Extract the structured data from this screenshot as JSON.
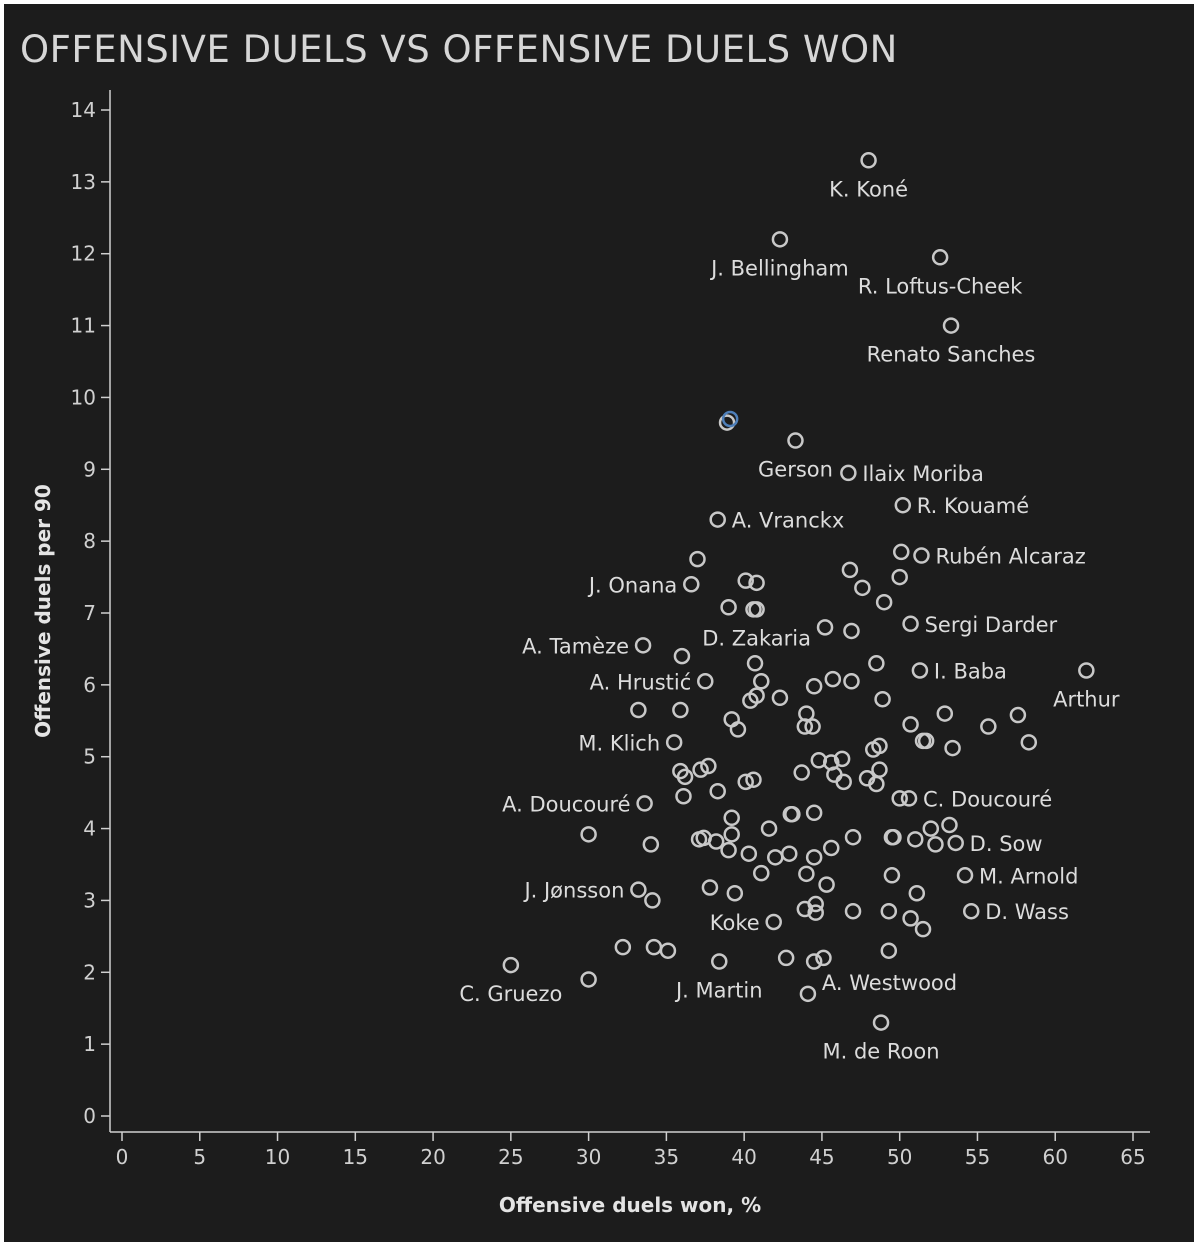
{
  "chart_data": {
    "type": "scatter",
    "title": "OFFENSIVE DUELS VS OFFENSIVE DUELS WON",
    "xlabel": "Offensive duels won, %",
    "ylabel": "Offensive duels per 90",
    "xlim": [
      0,
      65
    ],
    "ylim": [
      0,
      14
    ],
    "xticks": [
      0,
      5,
      10,
      15,
      20,
      25,
      30,
      35,
      40,
      45,
      50,
      55,
      60,
      65
    ],
    "yticks": [
      0,
      1,
      2,
      3,
      4,
      5,
      6,
      7,
      8,
      9,
      10,
      11,
      12,
      13,
      14
    ],
    "grid": false,
    "colors": {
      "background": "#1c1c1c",
      "point": "#c8c8c8",
      "highlight": "#4f7fb8",
      "text": "#d6d6d6"
    },
    "labeled_points": [
      {
        "label": "K. Koné",
        "x": 48.0,
        "y": 13.3,
        "pos": "below"
      },
      {
        "label": "J. Bellingham",
        "x": 42.3,
        "y": 12.2,
        "pos": "below"
      },
      {
        "label": "R. Loftus-Cheek",
        "x": 52.6,
        "y": 11.95,
        "pos": "below"
      },
      {
        "label": "Renato Sanches",
        "x": 53.3,
        "y": 11.0,
        "pos": "below"
      },
      {
        "label": "Gerson",
        "x": 43.3,
        "y": 9.4,
        "pos": "below"
      },
      {
        "label": "Ilaix Moriba",
        "x": 46.7,
        "y": 8.95,
        "pos": "right"
      },
      {
        "label": "R. Kouamé",
        "x": 50.2,
        "y": 8.5,
        "pos": "right"
      },
      {
        "label": "A. Vranckx",
        "x": 38.3,
        "y": 8.3,
        "pos": "right"
      },
      {
        "label": "Rubén Alcaraz",
        "x": 51.4,
        "y": 7.8,
        "pos": "right"
      },
      {
        "label": "J. Onana",
        "x": 36.6,
        "y": 7.4,
        "pos": "left"
      },
      {
        "label": "Sergi Darder",
        "x": 50.7,
        "y": 6.85,
        "pos": "right"
      },
      {
        "label": "D. Zakaria",
        "x": 40.8,
        "y": 7.05,
        "pos": "below"
      },
      {
        "label": "A. Tamèze",
        "x": 33.5,
        "y": 6.55,
        "pos": "left"
      },
      {
        "label": "I. Baba",
        "x": 51.3,
        "y": 6.2,
        "pos": "right"
      },
      {
        "label": "Arthur",
        "x": 62.0,
        "y": 6.2,
        "pos": "below"
      },
      {
        "label": "A. Hrustić",
        "x": 37.5,
        "y": 6.05,
        "pos": "left"
      },
      {
        "label": "M. Klich",
        "x": 35.5,
        "y": 5.2,
        "pos": "left"
      },
      {
        "label": "A. Doucouré",
        "x": 33.6,
        "y": 4.35,
        "pos": "left"
      },
      {
        "label": "C. Doucouré",
        "x": 50.6,
        "y": 4.42,
        "pos": "right"
      },
      {
        "label": "D. Sow",
        "x": 53.6,
        "y": 3.8,
        "pos": "right"
      },
      {
        "label": "M. Arnold",
        "x": 54.2,
        "y": 3.35,
        "pos": "right"
      },
      {
        "label": "J. Jønsson",
        "x": 33.2,
        "y": 3.15,
        "pos": "left"
      },
      {
        "label": "D. Wass",
        "x": 54.6,
        "y": 2.85,
        "pos": "right"
      },
      {
        "label": "Koke",
        "x": 41.9,
        "y": 2.7,
        "pos": "left"
      },
      {
        "label": "C. Gruezo",
        "x": 25.0,
        "y": 2.1,
        "pos": "below"
      },
      {
        "label": "J. Martin",
        "x": 38.4,
        "y": 2.15,
        "pos": "below"
      },
      {
        "label": "A. Westwood",
        "x": 44.1,
        "y": 1.7,
        "pos": "right-up"
      },
      {
        "label": "M. de Roon",
        "x": 48.8,
        "y": 1.3,
        "pos": "below"
      }
    ],
    "highlighted_points": [
      {
        "x": 39.1,
        "y": 9.7
      }
    ],
    "points": [
      [
        38.9,
        9.65
      ],
      [
        37.0,
        7.75
      ],
      [
        40.1,
        7.45
      ],
      [
        40.8,
        7.42
      ],
      [
        39.0,
        7.08
      ],
      [
        40.6,
        7.05
      ],
      [
        46.8,
        7.6
      ],
      [
        47.6,
        7.35
      ],
      [
        49.0,
        7.15
      ],
      [
        50.0,
        7.5
      ],
      [
        50.1,
        7.85
      ],
      [
        45.2,
        6.8
      ],
      [
        46.9,
        6.75
      ],
      [
        36.0,
        6.4
      ],
      [
        40.7,
        6.3
      ],
      [
        48.5,
        6.3
      ],
      [
        41.1,
        6.05
      ],
      [
        40.8,
        5.85
      ],
      [
        40.4,
        5.78
      ],
      [
        42.3,
        5.82
      ],
      [
        44.5,
        5.98
      ],
      [
        45.7,
        6.08
      ],
      [
        46.9,
        6.05
      ],
      [
        48.9,
        5.8
      ],
      [
        33.2,
        5.65
      ],
      [
        35.9,
        5.65
      ],
      [
        39.2,
        5.52
      ],
      [
        39.6,
        5.38
      ],
      [
        44.0,
        5.6
      ],
      [
        43.9,
        5.42
      ],
      [
        44.4,
        5.42
      ],
      [
        50.7,
        5.45
      ],
      [
        52.9,
        5.6
      ],
      [
        51.5,
        5.22
      ],
      [
        51.7,
        5.22
      ],
      [
        53.4,
        5.12
      ],
      [
        55.7,
        5.42
      ],
      [
        57.6,
        5.58
      ],
      [
        58.3,
        5.2
      ],
      [
        48.3,
        5.1
      ],
      [
        48.7,
        5.15
      ],
      [
        35.9,
        4.8
      ],
      [
        36.2,
        4.72
      ],
      [
        37.2,
        4.82
      ],
      [
        37.7,
        4.87
      ],
      [
        38.3,
        4.52
      ],
      [
        40.1,
        4.65
      ],
      [
        40.6,
        4.68
      ],
      [
        43.7,
        4.78
      ],
      [
        44.8,
        4.95
      ],
      [
        45.6,
        4.92
      ],
      [
        46.3,
        4.97
      ],
      [
        45.8,
        4.75
      ],
      [
        46.4,
        4.65
      ],
      [
        47.9,
        4.7
      ],
      [
        48.5,
        4.62
      ],
      [
        48.7,
        4.82
      ],
      [
        36.1,
        4.45
      ],
      [
        50.0,
        4.42
      ],
      [
        39.2,
        4.15
      ],
      [
        41.6,
        4.0
      ],
      [
        43.0,
        4.2
      ],
      [
        43.1,
        4.2
      ],
      [
        44.5,
        4.22
      ],
      [
        52.0,
        4.0
      ],
      [
        53.2,
        4.05
      ],
      [
        30.0,
        3.92
      ],
      [
        34.0,
        3.78
      ],
      [
        37.1,
        3.85
      ],
      [
        37.4,
        3.87
      ],
      [
        38.2,
        3.82
      ],
      [
        39.2,
        3.92
      ],
      [
        39.0,
        3.7
      ],
      [
        40.3,
        3.65
      ],
      [
        42.0,
        3.6
      ],
      [
        42.9,
        3.65
      ],
      [
        44.5,
        3.6
      ],
      [
        45.6,
        3.73
      ],
      [
        47.0,
        3.88
      ],
      [
        49.5,
        3.88
      ],
      [
        49.6,
        3.88
      ],
      [
        51.0,
        3.85
      ],
      [
        52.3,
        3.78
      ],
      [
        41.1,
        3.38
      ],
      [
        44.0,
        3.37
      ],
      [
        45.3,
        3.22
      ],
      [
        49.5,
        3.35
      ],
      [
        37.8,
        3.18
      ],
      [
        39.4,
        3.1
      ],
      [
        51.1,
        3.1
      ],
      [
        34.1,
        3.0
      ],
      [
        43.9,
        2.88
      ],
      [
        44.6,
        2.95
      ],
      [
        44.6,
        2.83
      ],
      [
        47.0,
        2.85
      ],
      [
        49.3,
        2.85
      ],
      [
        50.7,
        2.75
      ],
      [
        51.5,
        2.6
      ],
      [
        32.2,
        2.35
      ],
      [
        34.2,
        2.35
      ],
      [
        35.1,
        2.3
      ],
      [
        49.3,
        2.3
      ],
      [
        42.7,
        2.2
      ],
      [
        44.5,
        2.15
      ],
      [
        45.1,
        2.2
      ],
      [
        30.0,
        1.9
      ]
    ]
  }
}
